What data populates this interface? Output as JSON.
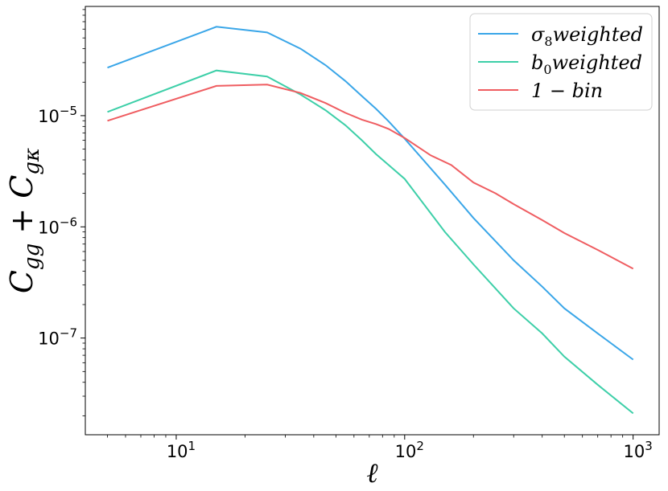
{
  "chart_data": {
    "type": "line",
    "title": "",
    "xlabel": "ℓ",
    "ylabel": "C_gg + C_gκ",
    "x_scale": "log",
    "y_scale": "log",
    "xlim": [
      4.0,
      1300
    ],
    "ylim": [
      1.35e-08,
      9.6e-05
    ],
    "x_ticks": [
      {
        "value": 10,
        "label": "10",
        "exp": "1"
      },
      {
        "value": 100,
        "label": "10",
        "exp": "2"
      },
      {
        "value": 1000,
        "label": "10",
        "exp": "3"
      }
    ],
    "y_ticks": [
      {
        "value": 1e-07,
        "label": "10",
        "exp": "−7"
      },
      {
        "value": 1e-06,
        "label": "10",
        "exp": "−6"
      },
      {
        "value": 1e-05,
        "label": "10",
        "exp": "−5"
      }
    ],
    "grid": false,
    "legend_position": "top-right",
    "series": [
      {
        "name": "σ8weighted",
        "legend_main": "σ",
        "legend_sub": "8",
        "legend_rest": "weighted",
        "color": "#3aa6e8",
        "x": [
          5,
          15,
          25,
          35,
          45,
          55,
          65,
          75,
          85,
          100,
          150,
          200,
          300,
          400,
          500,
          700,
          1000
        ],
        "y": [
          2.7e-05,
          6.3e-05,
          5.6e-05,
          4e-05,
          2.85e-05,
          2.05e-05,
          1.5e-05,
          1.15e-05,
          8.9e-06,
          6.2e-06,
          2.4e-06,
          1.2e-06,
          5e-07,
          2.9e-07,
          1.85e-07,
          1.1e-07,
          6.4e-08
        ]
      },
      {
        "name": "b0weighted",
        "legend_main": "b",
        "legend_sub": "0",
        "legend_rest": "weighted",
        "color": "#3dcfa8",
        "x": [
          5,
          15,
          25,
          35,
          45,
          55,
          65,
          75,
          85,
          100,
          150,
          200,
          300,
          400,
          500,
          700,
          1000
        ],
        "y": [
          1.08e-05,
          2.55e-05,
          2.25e-05,
          1.55e-05,
          1.12e-05,
          8.2e-06,
          6e-06,
          4.5e-06,
          3.6e-06,
          2.7e-06,
          9e-07,
          4.6e-07,
          1.85e-07,
          1.1e-07,
          6.8e-08,
          3.8e-08,
          2.1e-08
        ]
      },
      {
        "name": "1 − bin",
        "legend_main": "1 − bin",
        "legend_sub": "",
        "legend_rest": "",
        "color": "#ef5d61",
        "x": [
          5,
          15,
          25,
          35,
          45,
          55,
          65,
          75,
          85,
          100,
          130,
          160,
          200,
          250,
          300,
          400,
          500,
          700,
          1000
        ],
        "y": [
          9e-06,
          1.85e-05,
          1.9e-05,
          1.6e-05,
          1.3e-05,
          1.06e-05,
          9.2e-06,
          8.4e-06,
          7.6e-06,
          6.3e-06,
          4.4e-06,
          3.6e-06,
          2.5e-06,
          2e-06,
          1.6e-06,
          1.15e-06,
          8.8e-07,
          6.2e-07,
          4.2e-07
        ]
      }
    ]
  }
}
